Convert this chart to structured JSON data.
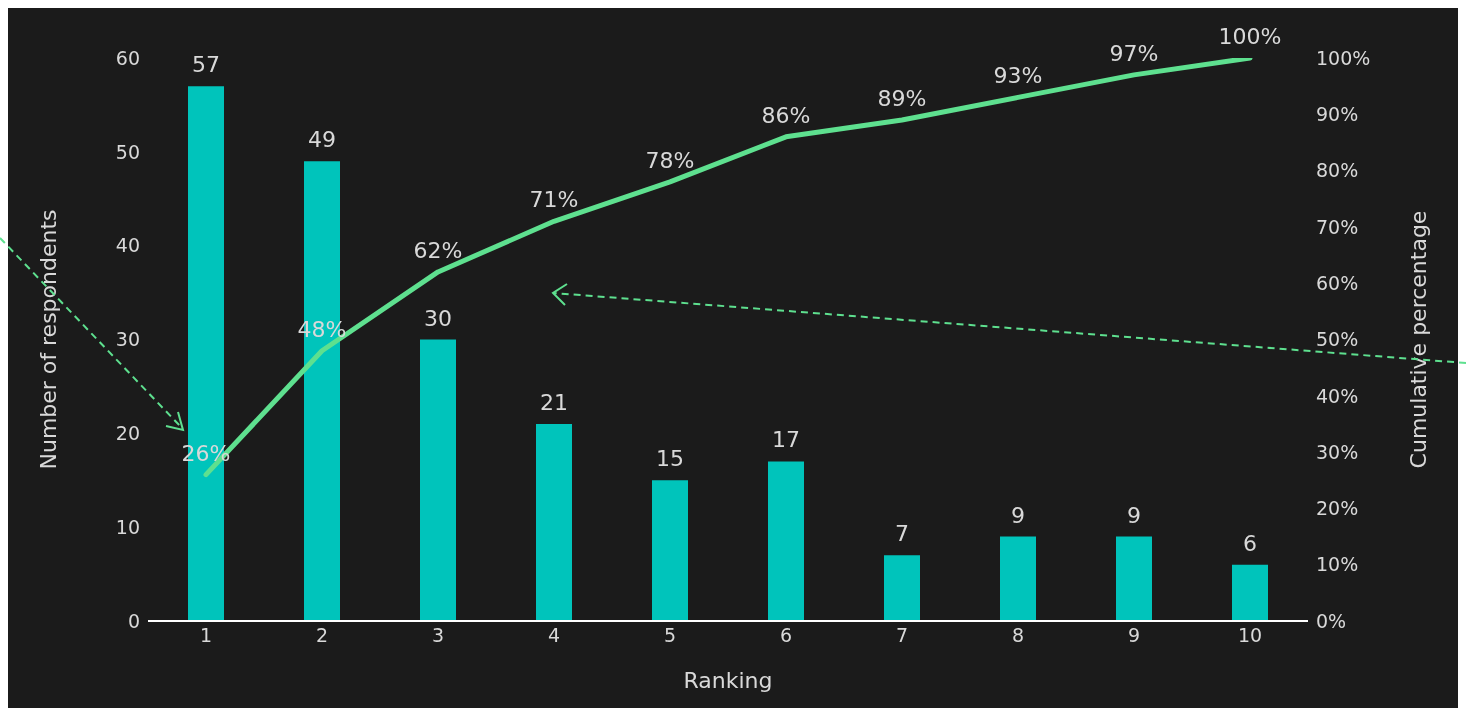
{
  "chart_data": {
    "type": "bar",
    "xlabel": "Ranking",
    "ylabel": "Number of respondents",
    "y2label": "Cumulative percentage",
    "categories": [
      "1",
      "2",
      "3",
      "4",
      "5",
      "6",
      "7",
      "8",
      "9",
      "10"
    ],
    "series": [
      {
        "color": "#00c4bb",
        "values": [
          57,
          49,
          30,
          21,
          15,
          17,
          7,
          9,
          9,
          6
        ]
      },
      {
        "type": "line",
        "axis": "y2",
        "color": "#5ee08f",
        "values": [
          26,
          48,
          62,
          71,
          78,
          86,
          89,
          93,
          97,
          100
        ],
        "value_labels": [
          "26%",
          "48%",
          "62%",
          "71%",
          "78%",
          "86%",
          "89%",
          "93%",
          "97%",
          "100%"
        ]
      }
    ],
    "ylim": [
      0,
      60
    ],
    "yticks": [
      0,
      10,
      20,
      30,
      40,
      50,
      60
    ],
    "y2lim": [
      0,
      100
    ],
    "y2ticks": [
      {
        "value": 0,
        "label": "0%"
      },
      {
        "value": 10,
        "label": "10%"
      },
      {
        "value": 20,
        "label": "20%"
      },
      {
        "value": 30,
        "label": "30%"
      },
      {
        "value": 40,
        "label": "40%"
      },
      {
        "value": 50,
        "label": "50%"
      },
      {
        "value": 60,
        "label": "60%"
      },
      {
        "value": 70,
        "label": "70%"
      },
      {
        "value": 80,
        "label": "80%"
      },
      {
        "value": 90,
        "label": "90%"
      },
      {
        "value": 100,
        "label": "100%"
      }
    ],
    "data_labels": true,
    "grid": false,
    "marker": "none",
    "line_style": "solid"
  }
}
